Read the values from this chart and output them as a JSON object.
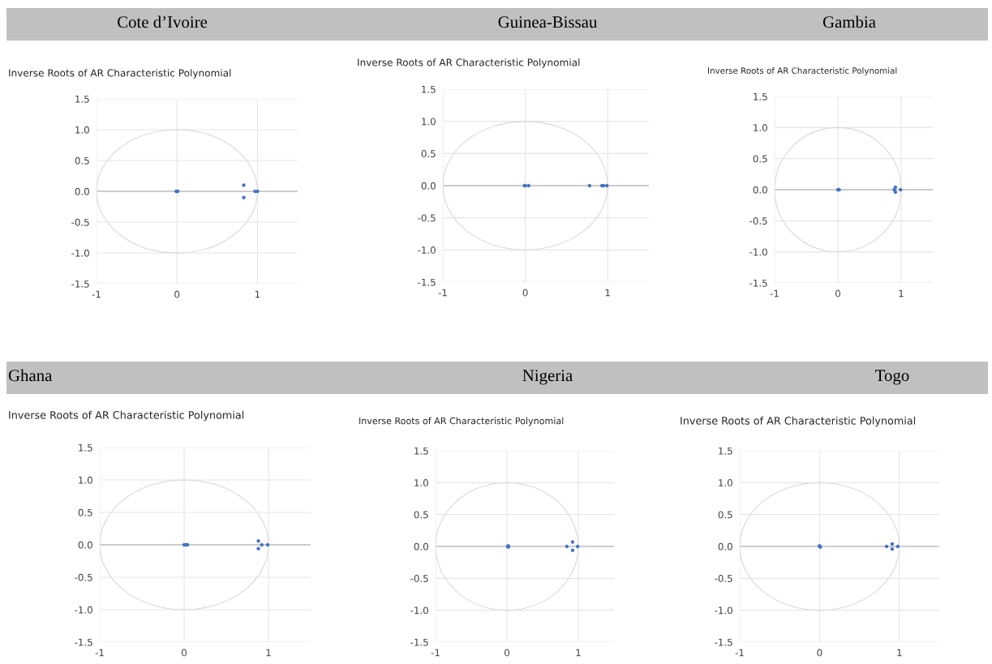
{
  "chart_data": [
    {
      "type": "scatter",
      "title": "Cote d’Ivoire",
      "subtitle": "Inverse Roots of AR Characteristic Polynomial",
      "xlim": [
        -1,
        1.5
      ],
      "xticks": [
        -1,
        0,
        1
      ],
      "ylim": [
        -1.5,
        1.5
      ],
      "yticks": [
        -1.5,
        {
          "value": -1,
          "label": "-1.0"
        },
        -0.5,
        {
          "value": 0,
          "label": "0.0"
        },
        0.5,
        {
          "value": 1,
          "label": "1.0"
        },
        1.5
      ],
      "grid": true,
      "marker": "circle",
      "series": [
        {
          "color": "#4472c4",
          "x": [
            -0.01,
            0.0,
            0.01,
            0.83,
            0.83,
            0.97,
            1.0
          ],
          "values": [
            0,
            0,
            0,
            0.1,
            -0.1,
            0,
            0
          ]
        }
      ]
    },
    {
      "type": "scatter",
      "title": "Guinea-Bissau",
      "subtitle": "Inverse Roots of AR Characteristic Polynomial",
      "xlim": [
        -1,
        1.5
      ],
      "xticks": [
        -1,
        0,
        1
      ],
      "ylim": [
        -1.5,
        1.5
      ],
      "yticks": [
        -1.5,
        {
          "value": -1,
          "label": "-1.0"
        },
        -0.5,
        {
          "value": 0,
          "label": "0.0"
        },
        0.5,
        {
          "value": 1,
          "label": "1.0"
        },
        1.5
      ],
      "grid": true,
      "marker": "circle",
      "series": [
        {
          "color": "#4472c4",
          "x": [
            -0.01,
            0.0,
            0.04,
            0.78,
            0.93,
            0.95,
            0.99
          ],
          "values": [
            0,
            0,
            0,
            0,
            0,
            0,
            0
          ]
        }
      ]
    },
    {
      "type": "scatter",
      "title": "Gambia",
      "subtitle": "Inverse Roots of AR Characteristic Polynomial",
      "xlim": [
        -1,
        1.5
      ],
      "xticks": [
        -1,
        0,
        1
      ],
      "ylim": [
        -1.5,
        1.5
      ],
      "yticks": [
        -1.5,
        {
          "value": -1,
          "label": "-1.0"
        },
        -0.5,
        {
          "value": 0,
          "label": "0.0"
        },
        0.5,
        {
          "value": 1,
          "label": "1.0"
        },
        1.5
      ],
      "grid": true,
      "marker": "circle",
      "series": [
        {
          "color": "#4472c4",
          "x": [
            0.0,
            0.01,
            0.02,
            0.89,
            0.91,
            0.91,
            0.99
          ],
          "values": [
            0,
            0,
            0,
            0,
            0.04,
            -0.04,
            0
          ]
        }
      ]
    },
    {
      "type": "scatter",
      "title": "Ghana",
      "subtitle": "Inverse Roots of AR Characteristic Polynomial",
      "xlim": [
        -1,
        1.5
      ],
      "xticks": [
        -1,
        0,
        1
      ],
      "ylim": [
        -1.5,
        1.5
      ],
      "yticks": [
        -1.5,
        {
          "value": -1,
          "label": "-1.0"
        },
        -0.5,
        {
          "value": 0,
          "label": "0.0"
        },
        0.5,
        {
          "value": 1,
          "label": "1.0"
        },
        1.5
      ],
      "grid": true,
      "marker": "circle",
      "series": [
        {
          "color": "#4472c4",
          "x": [
            0.0,
            0.02,
            0.04,
            0.88,
            0.88,
            0.92,
            0.99
          ],
          "values": [
            0,
            0,
            0,
            0.06,
            -0.06,
            0,
            0
          ]
        }
      ]
    },
    {
      "type": "scatter",
      "title": "Nigeria",
      "subtitle": "Inverse Roots of AR Characteristic Polynomial",
      "xlim": [
        -1,
        1.5
      ],
      "xticks": [
        -1,
        0,
        1
      ],
      "ylim": [
        -1.5,
        1.5
      ],
      "yticks": [
        -1.5,
        {
          "value": -1,
          "label": "-1.0"
        },
        -0.5,
        {
          "value": 0,
          "label": "0.0"
        },
        0.5,
        {
          "value": 1,
          "label": "1.0"
        },
        1.5
      ],
      "grid": true,
      "marker": "circle",
      "series": [
        {
          "color": "#4472c4",
          "x": [
            0.01,
            0.02,
            0.02,
            0.84,
            0.92,
            0.92,
            0.99
          ],
          "values": [
            0,
            0.01,
            -0.01,
            0,
            0.07,
            -0.06,
            0
          ]
        }
      ]
    },
    {
      "type": "scatter",
      "title": "Togo",
      "subtitle": "Inverse Roots of AR Characteristic Polynomial",
      "xlim": [
        -1,
        1.5
      ],
      "xticks": [
        -1,
        0,
        1
      ],
      "ylim": [
        -1.5,
        1.5
      ],
      "yticks": [
        -1.5,
        {
          "value": -1,
          "label": "-1.0"
        },
        -0.5,
        {
          "value": 0,
          "label": "0.0"
        },
        0.5,
        {
          "value": 1,
          "label": "1.0"
        },
        1.5
      ],
      "grid": true,
      "marker": "circle",
      "series": [
        {
          "color": "#4472c4",
          "x": [
            0.0,
            0.0,
            0.01,
            0.84,
            0.91,
            0.91,
            0.98
          ],
          "values": [
            0,
            0.01,
            -0.01,
            0,
            0.04,
            -0.04,
            0
          ]
        }
      ]
    }
  ]
}
